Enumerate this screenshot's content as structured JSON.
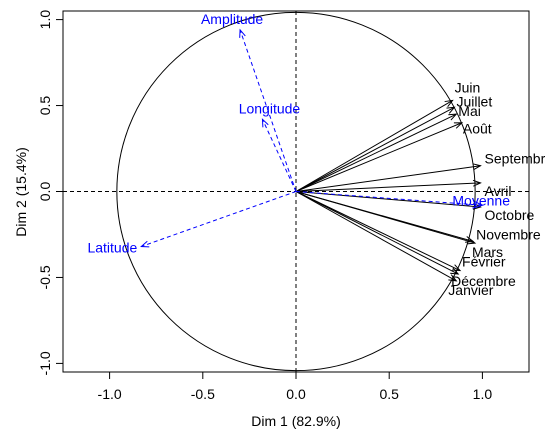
{
  "chart_data": {
    "type": "variables-factor-map",
    "xlabel": "Dim 1 (82.9%)",
    "ylabel": "Dim 2 (15.4%)",
    "xlim": [
      -1.25,
      1.25
    ],
    "ylim": [
      -1.05,
      1.05
    ],
    "x_ticks": [
      -1.0,
      -0.5,
      0.0,
      0.5,
      1.0
    ],
    "x_tick_labels": [
      "-1.0",
      "-0.5",
      "0.0",
      "0.5",
      "1.0"
    ],
    "y_ticks": [
      -1.0,
      -0.5,
      0.0,
      0.5,
      1.0
    ],
    "y_tick_labels": [
      "-1.0",
      "-0.5",
      "0.0",
      "0.5",
      "1.0"
    ],
    "grid": false,
    "circle_radius": 1.0,
    "colors": {
      "active": "#000000",
      "supplementary": "#0000ff",
      "frame": "#000000"
    },
    "active_variables": [
      {
        "name": "Juin",
        "x": 0.84,
        "y": 0.53
      },
      {
        "name": "Juillet",
        "x": 0.85,
        "y": 0.49
      },
      {
        "name": "Mai",
        "x": 0.86,
        "y": 0.45
      },
      {
        "name": "Août",
        "x": 0.89,
        "y": 0.4
      },
      {
        "name": "Septembre",
        "x": 0.99,
        "y": 0.15
      },
      {
        "name": "Avril",
        "x": 0.99,
        "y": 0.05
      },
      {
        "name": "Octobre",
        "x": 0.99,
        "y": -0.09
      },
      {
        "name": "Novembre",
        "x": 0.95,
        "y": -0.29
      },
      {
        "name": "Mars",
        "x": 0.96,
        "y": -0.3
      },
      {
        "name": "Février",
        "x": 0.88,
        "y": -0.46
      },
      {
        "name": "Décembre",
        "x": 0.87,
        "y": -0.48
      },
      {
        "name": "Janvier",
        "x": 0.86,
        "y": -0.52
      }
    ],
    "supplementary_variables": [
      {
        "name": "Amplitude",
        "x": -0.3,
        "y": 0.94
      },
      {
        "name": "Longitude",
        "x": -0.18,
        "y": 0.42
      },
      {
        "name": "Latitude",
        "x": -0.83,
        "y": -0.32
      },
      {
        "name": "Moyenne",
        "x": 1.0,
        "y": -0.08
      }
    ]
  }
}
